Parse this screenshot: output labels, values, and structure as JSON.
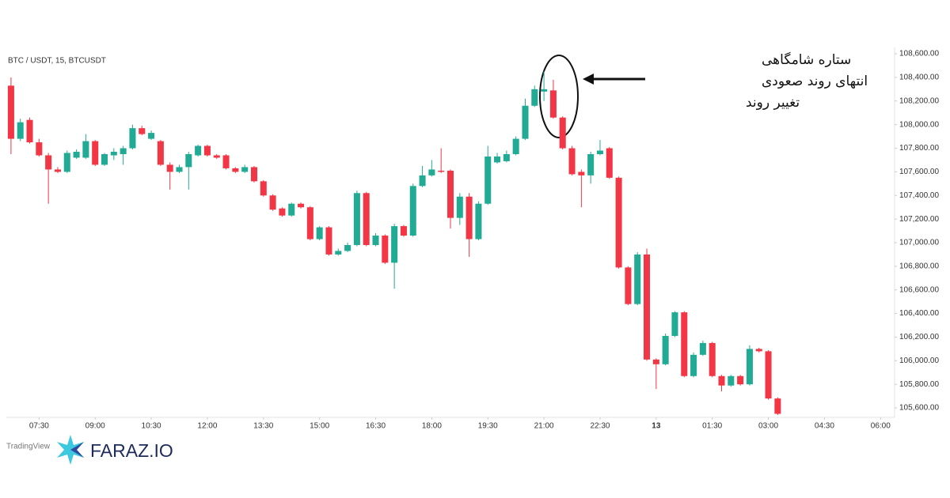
{
  "chart_data": {
    "type": "candlestick",
    "title": "BTC / USDT, 15, BTCUSDT",
    "annotation": [
      "ستاره شامگاهی",
      "انتهای روند صعودی",
      "تغییر روند"
    ],
    "brand": "FARAZ.IO",
    "watermark": "TradingView",
    "up_color": "#22ab94",
    "down_color": "#f23645",
    "grid": false,
    "x": [
      0,
      1,
      2,
      3,
      4,
      5,
      6,
      7,
      8,
      9,
      10,
      11,
      12,
      13,
      14,
      15,
      16,
      17,
      18,
      19,
      20,
      21,
      22,
      23,
      24,
      25,
      26,
      27,
      28,
      29,
      30,
      31,
      32,
      33,
      34,
      35,
      36,
      37,
      38,
      39,
      40,
      41,
      42,
      43,
      44,
      45,
      46,
      47,
      48,
      49,
      50,
      51,
      52,
      53,
      54,
      55,
      56,
      57,
      58,
      59,
      60,
      61,
      62,
      63,
      64,
      65,
      66,
      67,
      68,
      69,
      70,
      71,
      72,
      73,
      74,
      75,
      76,
      77,
      78,
      79,
      80,
      81,
      82
    ],
    "open": [
      108330,
      107880,
      108040,
      107850,
      107740,
      107620,
      107600,
      107720,
      107720,
      107860,
      107660,
      107740,
      107750,
      107800,
      107970,
      107880,
      107860,
      107660,
      107600,
      107640,
      107740,
      107820,
      107740,
      107740,
      107630,
      107600,
      107640,
      107520,
      107400,
      107290,
      107230,
      107330,
      107300,
      107030,
      107130,
      106900,
      106930,
      106980,
      107420,
      106980,
      107060,
      106830,
      107140,
      107060,
      107480,
      107570,
      107610,
      107610,
      107210,
      107390,
      107030,
      107330,
      107680,
      107690,
      107750,
      107880,
      108160,
      108280,
      108290,
      108060,
      107800,
      107600,
      107570,
      107750,
      107800,
      107550,
      106790,
      106480,
      106900,
      106010,
      105970,
      106210,
      106410,
      105870,
      106050,
      106150,
      105870,
      105790,
      105870,
      105800,
      106100,
      106080,
      105680
    ],
    "high": [
      108400,
      108050,
      108060,
      107880,
      107760,
      107640,
      107780,
      107790,
      107920,
      107870,
      107760,
      107800,
      107820,
      108000,
      107990,
      107950,
      107870,
      107680,
      107660,
      107770,
      107830,
      107830,
      107750,
      107750,
      107640,
      107660,
      107650,
      107530,
      107410,
      107300,
      107340,
      107340,
      107310,
      107140,
      107140,
      106950,
      107000,
      107440,
      107430,
      107080,
      107070,
      107160,
      107150,
      107500,
      107650,
      107700,
      107800,
      107620,
      107420,
      107420,
      107350,
      107820,
      107760,
      107780,
      107900,
      108220,
      108330,
      108450,
      108380,
      108070,
      107820,
      107620,
      107770,
      107870,
      107810,
      107560,
      106800,
      106920,
      106950,
      106020,
      106230,
      106420,
      106420,
      106070,
      106170,
      106160,
      105880,
      105880,
      105880,
      106130,
      106110,
      106090,
      105690
    ],
    "low": [
      107750,
      107860,
      107840,
      107730,
      107330,
      107590,
      107590,
      107710,
      107710,
      107650,
      107650,
      107700,
      107660,
      107790,
      107910,
      107870,
      107650,
      107450,
      107590,
      107450,
      107730,
      107730,
      107710,
      107620,
      107590,
      107590,
      107510,
      107390,
      107270,
      107220,
      107220,
      107290,
      107020,
      107020,
      106890,
      106890,
      106920,
      106970,
      106970,
      106970,
      106820,
      106610,
      107050,
      107050,
      107470,
      107560,
      107590,
      107120,
      107150,
      106880,
      107020,
      107320,
      107670,
      107680,
      107740,
      107870,
      108150,
      108200,
      108050,
      107790,
      107570,
      107300,
      107500,
      107740,
      107540,
      106780,
      106470,
      106470,
      106000,
      105760,
      105960,
      106200,
      105860,
      105860,
      106040,
      105860,
      105740,
      105780,
      105790,
      105790,
      106070,
      105670,
      105540
    ],
    "close": [
      107880,
      108020,
      107850,
      107740,
      107620,
      107600,
      107760,
      107770,
      107860,
      107660,
      107750,
      107770,
      107800,
      107970,
      107920,
      107930,
      107660,
      107600,
      107640,
      107750,
      107820,
      107740,
      107720,
      107630,
      107600,
      107640,
      107520,
      107400,
      107280,
      107230,
      107330,
      107300,
      107030,
      107130,
      106900,
      106930,
      106980,
      107420,
      106980,
      107060,
      106830,
      107140,
      107060,
      107480,
      107570,
      107620,
      107600,
      107210,
      107390,
      107030,
      107330,
      107730,
      107730,
      107750,
      107880,
      108160,
      108300,
      108300,
      108060,
      107800,
      107580,
      107570,
      107750,
      107780,
      107550,
      106790,
      106480,
      106900,
      106010,
      105970,
      106210,
      106410,
      105870,
      106050,
      106150,
      105870,
      105790,
      105870,
      105800,
      106100,
      106080,
      105680,
      105550
    ],
    "xlim": [
      -0.5,
      94.5
    ],
    "xticks": [
      {
        "value": 3,
        "label": "07:30"
      },
      {
        "value": 9,
        "label": "09:00"
      },
      {
        "value": 15,
        "label": "10:30"
      },
      {
        "value": 21,
        "label": "12:00"
      },
      {
        "value": 27,
        "label": "13:30"
      },
      {
        "value": 33,
        "label": "15:00"
      },
      {
        "value": 39,
        "label": "16:30"
      },
      {
        "value": 45,
        "label": "18:00"
      },
      {
        "value": 51,
        "label": "19:30"
      },
      {
        "value": 57,
        "label": "21:00"
      },
      {
        "value": 63,
        "label": "22:30"
      },
      {
        "value": 69,
        "label": "13"
      },
      {
        "value": 75,
        "label": "01:30"
      },
      {
        "value": 81,
        "label": "03:00"
      },
      {
        "value": 87,
        "label": "04:30"
      },
      {
        "value": 93,
        "label": "06:00"
      }
    ],
    "ylim": [
      105520,
      108654
    ],
    "yticks": [
      {
        "value": 105600,
        "label": "105,600.00"
      },
      {
        "value": 105800,
        "label": "105,800.00"
      },
      {
        "value": 106000,
        "label": "106,000.00"
      },
      {
        "value": 106200,
        "label": "106,200.00"
      },
      {
        "value": 106400,
        "label": "106,400.00"
      },
      {
        "value": 106600,
        "label": "106,600.00"
      },
      {
        "value": 106800,
        "label": "106,800.00"
      },
      {
        "value": 107000,
        "label": "107,000.00"
      },
      {
        "value": 107200,
        "label": "107,200.00"
      },
      {
        "value": 107400,
        "label": "107,400.00"
      },
      {
        "value": 107600,
        "label": "107,600.00"
      },
      {
        "value": 107800,
        "label": "107,800.00"
      },
      {
        "value": 108000,
        "label": "108,000.00"
      },
      {
        "value": 108200,
        "label": "108,200.00"
      },
      {
        "value": 108400,
        "label": "108,400.00"
      },
      {
        "value": 108600,
        "label": "108,600.00"
      }
    ]
  }
}
